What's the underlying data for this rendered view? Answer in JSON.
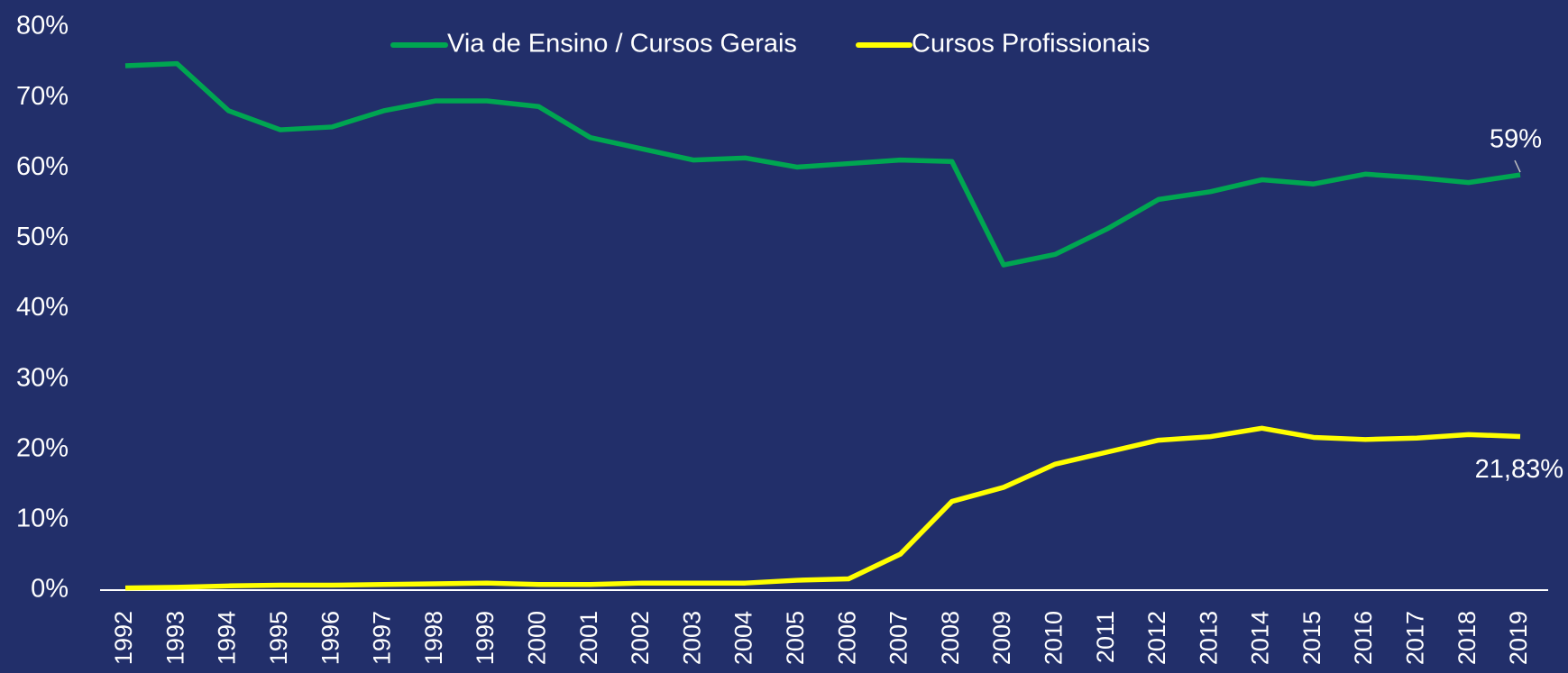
{
  "chart_data": {
    "type": "line",
    "categories": [
      "1992",
      "1993",
      "1994",
      "1995",
      "1996",
      "1997",
      "1998",
      "1999",
      "2000",
      "2001",
      "2002",
      "2003",
      "2004",
      "2005",
      "2006",
      "2007",
      "2008",
      "2009",
      "2010",
      "2011",
      "2012",
      "2013",
      "2014",
      "2015",
      "2016",
      "2017",
      "2018",
      "2019"
    ],
    "series": [
      {
        "name": "Via de Ensino / Cursos Gerais",
        "color": "#00a651",
        "values": [
          74.5,
          74.8,
          68.1,
          65.4,
          65.8,
          68.1,
          69.5,
          69.5,
          68.7,
          64.3,
          62.7,
          61.1,
          61.4,
          60.1,
          60.6,
          61.1,
          60.9,
          46.2,
          47.7,
          51.3,
          55.5,
          56.6,
          58.3,
          57.7,
          59.1,
          58.6,
          57.9,
          59
        ],
        "value_labels": [
          null,
          null,
          null,
          null,
          null,
          null,
          null,
          null,
          null,
          null,
          null,
          null,
          null,
          null,
          null,
          null,
          null,
          null,
          null,
          null,
          null,
          null,
          null,
          null,
          null,
          null,
          null,
          "59%"
        ]
      },
      {
        "name": "Cursos Profissionais",
        "color": "#ffff00",
        "values": [
          0.3,
          0.4,
          0.6,
          0.7,
          0.7,
          0.8,
          0.9,
          1.0,
          0.8,
          0.8,
          1.0,
          1.0,
          1.0,
          1.4,
          1.6,
          5.1,
          12.6,
          14.6,
          17.9,
          19.6,
          21.3,
          21.8,
          23.0,
          21.7,
          21.4,
          21.6,
          22.1,
          21.83
        ],
        "value_labels": [
          null,
          null,
          null,
          null,
          null,
          null,
          null,
          null,
          null,
          null,
          null,
          null,
          null,
          null,
          null,
          null,
          null,
          null,
          null,
          null,
          null,
          null,
          null,
          null,
          null,
          null,
          null,
          "21,83%"
        ]
      }
    ],
    "ylim": [
      0,
      80
    ],
    "yticks": [
      {
        "value": 0,
        "label": "0%"
      },
      {
        "value": 10,
        "label": "10%"
      },
      {
        "value": 20,
        "label": "20%"
      },
      {
        "value": 30,
        "label": "30%"
      },
      {
        "value": 40,
        "label": "40%"
      },
      {
        "value": 50,
        "label": "50%"
      },
      {
        "value": 60,
        "label": "60%"
      },
      {
        "value": 70,
        "label": "70%"
      },
      {
        "value": 80,
        "label": "80%"
      }
    ],
    "grid": false,
    "legend": "top"
  }
}
